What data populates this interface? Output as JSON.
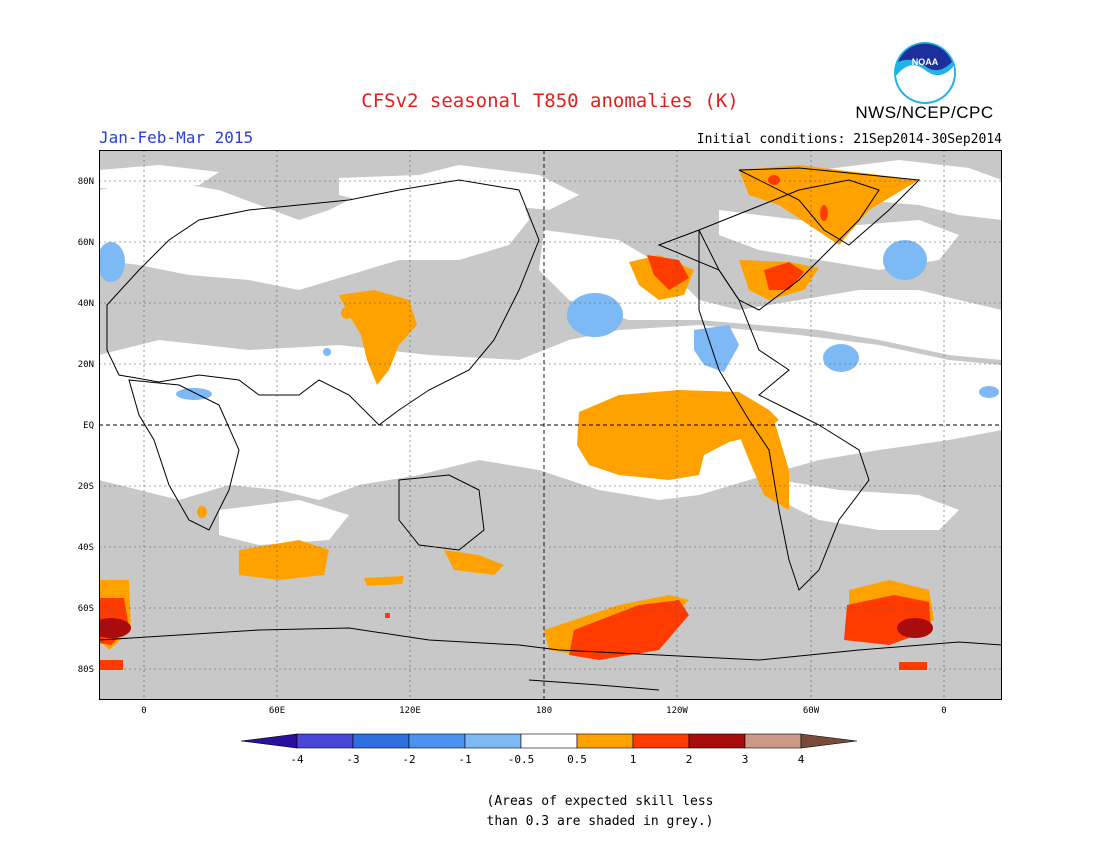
{
  "header": {
    "title": "CFSv2 seasonal T850 anomalies (K)",
    "agency": "NWS/NCEP/CPC",
    "logo_text": "NOAA",
    "period": "Jan-Feb-Mar 2015",
    "initial_conditions": "Initial conditions: 21Sep2014-30Sep2014"
  },
  "map": {
    "lat_labels": [
      "80N",
      "60N",
      "40N",
      "20N",
      "EQ",
      "20S",
      "40S",
      "60S",
      "80S"
    ],
    "lon_labels": [
      "0",
      "60E",
      "120E",
      "180",
      "120W",
      "60W",
      "0"
    ]
  },
  "colorbar": {
    "labels": [
      "-4",
      "-3",
      "-2",
      "-1",
      "-0.5",
      "0.5",
      "1",
      "2",
      "3",
      "4"
    ],
    "colors": [
      "#2b10a0",
      "#4a46d6",
      "#2d6ee0",
      "#4b93ef",
      "#7cb9f5",
      "#ffffff",
      "#ffa200",
      "#ff3b00",
      "#a80c0c",
      "#c99a85",
      "#7a4a3a"
    ]
  },
  "note": {
    "line1": "(Areas of expected skill less",
    "line2": "than 0.3 are shaded in grey.)"
  },
  "colors": {
    "skill_grey": "#c8c8c8",
    "positive_05_1": "#ffa200",
    "positive_1_2": "#ff3b00",
    "positive_2_3": "#a80c0c",
    "negative_05_1": "#7cb9f5",
    "title_red": "#e0201c",
    "period_blue": "#2a3fd8"
  }
}
